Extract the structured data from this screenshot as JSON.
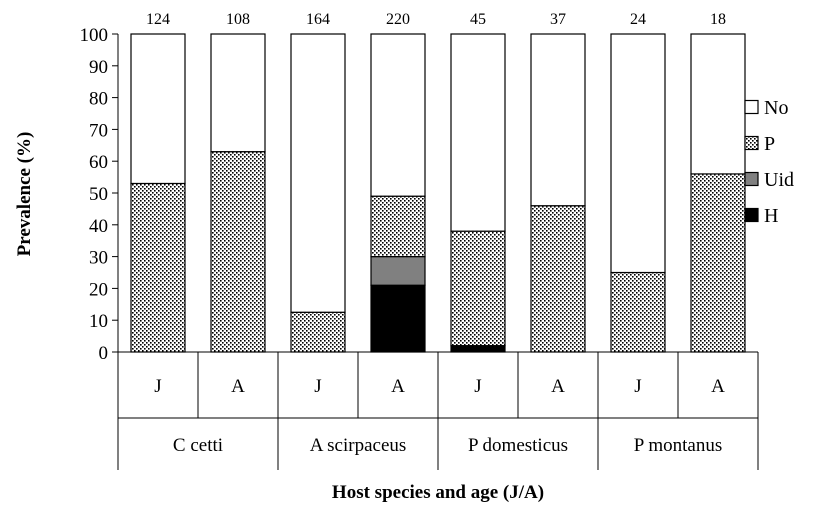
{
  "chart_data": {
    "type": "bar",
    "stacked": true,
    "ylabel": "Prevalence (%)",
    "xlabel": "Host species and age (J/A)",
    "ylim": [
      0,
      100
    ],
    "yticks": [
      0,
      10,
      20,
      30,
      40,
      50,
      60,
      70,
      80,
      90,
      100
    ],
    "categories": [
      "J",
      "A",
      "J",
      "A",
      "J",
      "A",
      "J",
      "A"
    ],
    "groups": [
      "C cetti",
      "A scirpaceus",
      "P domesticus",
      "P montanus"
    ],
    "sample_sizes": [
      "124",
      "108",
      "164",
      "220",
      "45",
      "37",
      "24",
      "18"
    ],
    "series": [
      {
        "name": "H",
        "color": "#000000",
        "pattern": "solid",
        "values": [
          0,
          0,
          0,
          21,
          2,
          0,
          0,
          0
        ]
      },
      {
        "name": "Uid",
        "color": "#808080",
        "pattern": "solid",
        "values": [
          0,
          0,
          0,
          9,
          0,
          0,
          0,
          0
        ]
      },
      {
        "name": "P",
        "color": "#ffffff",
        "pattern": "dots",
        "values": [
          53,
          63,
          12.5,
          19,
          36,
          46,
          25,
          56
        ]
      },
      {
        "name": "No",
        "color": "#ffffff",
        "pattern": "none",
        "values": [
          47,
          37,
          87.5,
          51,
          62,
          54,
          75,
          44
        ]
      }
    ],
    "legend_order": [
      "No",
      "P",
      "Uid",
      "H"
    ],
    "legend_position": "right",
    "grid": false
  }
}
